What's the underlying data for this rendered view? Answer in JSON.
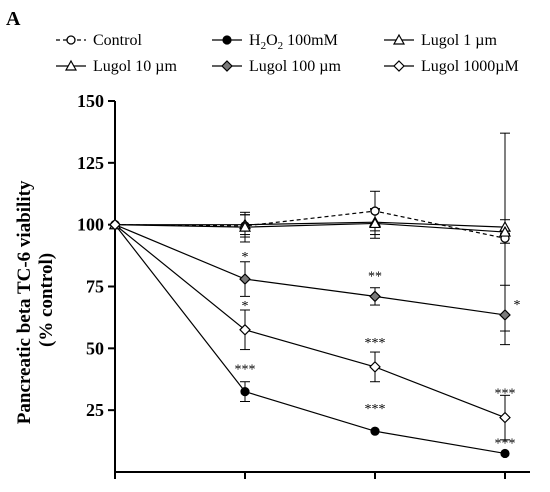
{
  "chart_data": {
    "type": "line",
    "panel_label": "A",
    "ylabel_line1": "Pancreatic beta TC-6 viability",
    "ylabel_line2": "(% control)",
    "ylim": [
      0,
      150
    ],
    "yticks": [
      "150",
      "125",
      "100",
      "75",
      "50",
      "25"
    ],
    "x": [
      0,
      1,
      2,
      3
    ],
    "legend": [
      {
        "label": "Control",
        "marker": "open-circle",
        "line": "dashed"
      },
      {
        "label_prefix": "H",
        "label_sub": "2",
        "label_mid": "O",
        "label_sub2": "2",
        "label_suffix": " 100mM",
        "marker": "filled-circle",
        "line": "solid"
      },
      {
        "label": "Lugol 1 µm",
        "marker": "open-triangle",
        "line": "solid"
      },
      {
        "label": "Lugol 10 µm",
        "marker": "open-triangle",
        "line": "solid"
      },
      {
        "label": "Lugol 100 µm",
        "marker": "gray-diamond",
        "line": "solid"
      },
      {
        "label": "Lugol 1000µM",
        "marker": "open-diamond",
        "line": "solid"
      }
    ],
    "series": [
      {
        "name": "Control",
        "marker": "open-circle",
        "dash": true,
        "values": [
          100,
          99.5,
          105.5,
          94.5
        ],
        "err": [
          0,
          4.5,
          8,
          2
        ]
      },
      {
        "name": "H2O2 100mM",
        "marker": "filled-circle",
        "dash": false,
        "values": [
          100,
          32.5,
          16.5,
          7.5
        ],
        "err": [
          0,
          4,
          0,
          0
        ],
        "sig": [
          "",
          "***",
          "***",
          "***"
        ]
      },
      {
        "name": "Lugol 1 µm",
        "marker": "open-triangle",
        "dash": false,
        "values": [
          100,
          100,
          101,
          99
        ],
        "err": [
          0,
          4,
          5,
          3
        ]
      },
      {
        "name": "Lugol 10 µm",
        "marker": "open-triangle",
        "dash": false,
        "values": [
          100,
          99,
          100.5,
          97
        ],
        "err": [
          0,
          6,
          6,
          40
        ]
      },
      {
        "name": "Lugol 100 µm",
        "marker": "gray-diamond",
        "dash": false,
        "values": [
          100,
          78,
          71,
          63.5
        ],
        "err": [
          0,
          7,
          3.5,
          12
        ],
        "sig": [
          "",
          "*",
          "**",
          "*"
        ]
      },
      {
        "name": "Lugol 1000µM",
        "marker": "open-diamond",
        "dash": false,
        "values": [
          100,
          57.5,
          42.5,
          22
        ],
        "err": [
          0,
          8,
          6,
          9
        ],
        "sig": [
          "",
          "*",
          "***",
          "***"
        ]
      }
    ]
  }
}
